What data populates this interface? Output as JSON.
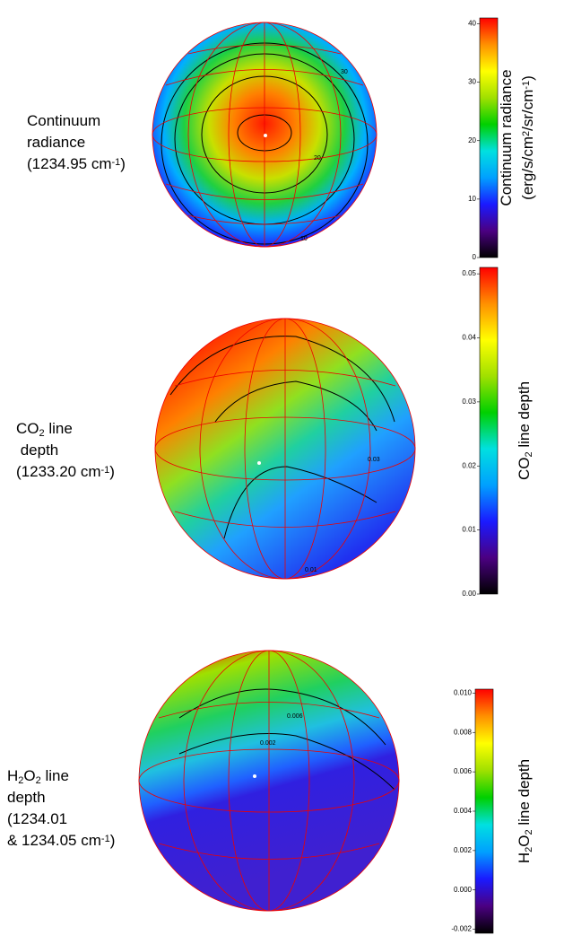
{
  "panels": [
    {
      "label": [
        [
          {
            "text": "Continuum"
          }
        ],
        [
          {
            "text": "radiance"
          }
        ],
        [
          {
            "text": "(1234.95 cm"
          },
          {
            "text": "-1",
            "script": "sup"
          },
          {
            "text": ")"
          }
        ]
      ],
      "colorbar": {
        "title": [
          [
            {
              "text": "Continuum radiance"
            }
          ],
          [
            {
              "text": "(erg/s/cm"
            },
            {
              "text": "2",
              "script": "sup"
            },
            {
              "text": "/sr/cm"
            },
            {
              "text": "-1",
              "script": "sup"
            },
            {
              "text": ")"
            }
          ]
        ],
        "lim": [
          0,
          41
        ],
        "ticks": [
          0,
          10,
          20,
          30,
          40
        ]
      },
      "contour_labels": [
        "30",
        "20",
        "10"
      ]
    },
    {
      "label": [
        [
          {
            "text": "CO"
          },
          {
            "text": "2",
            "script": "sub"
          },
          {
            "text": " line"
          }
        ],
        [
          {
            "text": " depth"
          }
        ],
        [
          {
            "text": "(1233.20 cm"
          },
          {
            "text": "-1",
            "script": "sup"
          },
          {
            "text": ")"
          }
        ]
      ],
      "colorbar": {
        "title": [
          [
            {
              "text": "CO"
            },
            {
              "text": "2",
              "script": "sub"
            },
            {
              "text": " line depth"
            }
          ]
        ],
        "lim": [
          0,
          0.051
        ],
        "ticks": [
          {
            "value": 0,
            "label": "0.00"
          },
          0.01,
          0.02,
          0.03,
          0.04,
          0.05
        ]
      },
      "contour_labels": [
        "0.03",
        "0.01"
      ]
    },
    {
      "label": [
        [
          {
            "text": "H"
          },
          {
            "text": "2",
            "script": "sub"
          },
          {
            "text": "O"
          },
          {
            "text": "2",
            "script": "sub"
          },
          {
            "text": " line"
          }
        ],
        [
          {
            "text": "depth"
          }
        ],
        [
          {
            "text": "(1234.01"
          }
        ],
        [
          {
            "text": "& 1234.05 cm"
          },
          {
            "text": "-1",
            "script": "sup"
          },
          {
            "text": ")"
          }
        ]
      ],
      "colorbar": {
        "title": [
          [
            {
              "text": "H"
            },
            {
              "text": "2",
              "script": "sub"
            },
            {
              "text": "O"
            },
            {
              "text": "2",
              "script": "sub"
            },
            {
              "text": " line depth"
            }
          ]
        ],
        "lim": [
          -0.0022,
          0.0102
        ],
        "ticks": [
          {
            "value": -0.002,
            "label": "-0.002"
          },
          {
            "value": 0,
            "label": "0.000"
          },
          0.002,
          0.004,
          0.006,
          0.008,
          {
            "value": 0.01,
            "label": "0.010"
          }
        ]
      },
      "contour_labels": [
        "0.006",
        "0.002"
      ]
    }
  ],
  "colormap": [
    "#000000",
    "#4b0082",
    "#1a1aff",
    "#00a0ff",
    "#00e0e0",
    "#00d000",
    "#a0e000",
    "#ffff00",
    "#ff9000",
    "#ff0000"
  ]
}
